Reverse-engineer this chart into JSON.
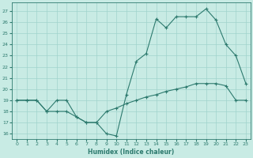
{
  "title": "",
  "xlabel": "Humidex (Indice chaleur)",
  "x_values": [
    0,
    1,
    2,
    3,
    4,
    5,
    6,
    7,
    8,
    9,
    10,
    11,
    12,
    13,
    14,
    15,
    16,
    17,
    18,
    19,
    20,
    21,
    22,
    23
  ],
  "line1": [
    19,
    19,
    19,
    18,
    19,
    19,
    17.5,
    17,
    17,
    16,
    15.8,
    19.5,
    22.5,
    23.2,
    26.3,
    25.5,
    26.5,
    26.5,
    26.5,
    27.2,
    26.2,
    24,
    23,
    20.5
  ],
  "line2": [
    19,
    19,
    19,
    18,
    18,
    18,
    17.5,
    17,
    17,
    18,
    18.3,
    18.7,
    19,
    19.3,
    19.5,
    19.8,
    20,
    20.2,
    20.5,
    20.5,
    20.5,
    20.3,
    19,
    19
  ],
  "ylim": [
    15.5,
    27.8
  ],
  "xlim": [
    -0.5,
    23.5
  ],
  "yticks": [
    16,
    17,
    18,
    19,
    20,
    21,
    22,
    23,
    24,
    25,
    26,
    27
  ],
  "xticks": [
    0,
    1,
    2,
    3,
    4,
    5,
    6,
    7,
    8,
    9,
    10,
    11,
    12,
    13,
    14,
    15,
    16,
    17,
    18,
    19,
    20,
    21,
    22,
    23
  ],
  "line_color": "#2d7a6e",
  "bg_color": "#c8ebe4",
  "grid_color": "#a0d4cc"
}
